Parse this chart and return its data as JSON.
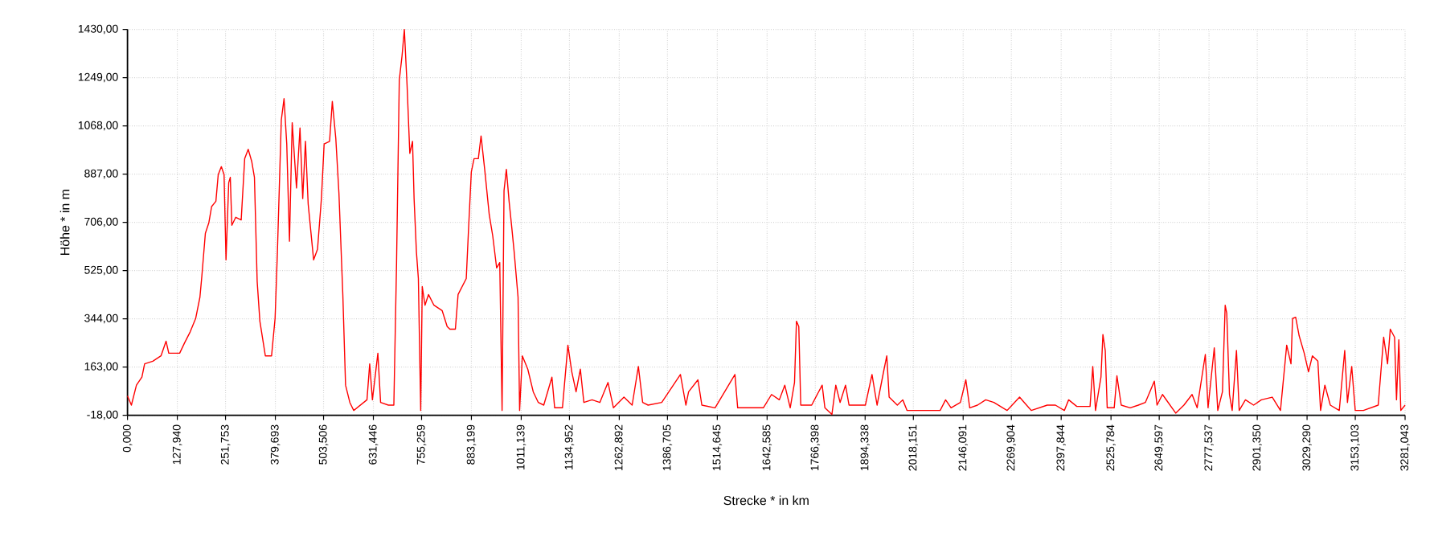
{
  "chart_data": {
    "type": "line",
    "xlabel": "Strecke *  in  km",
    "ylabel": "Höhe *  in  m",
    "xlim": [
      0,
      3281.043
    ],
    "ylim": [
      -18,
      1430
    ],
    "xticks": [
      {
        "value": 0,
        "label": "0,000"
      },
      {
        "value": 127.94,
        "label": "127,940"
      },
      {
        "value": 251.753,
        "label": "251,753"
      },
      {
        "value": 379.693,
        "label": "379,693"
      },
      {
        "value": 503.506,
        "label": "503,506"
      },
      {
        "value": 631.446,
        "label": "631,446"
      },
      {
        "value": 755.259,
        "label": "755,259"
      },
      {
        "value": 883.199,
        "label": "883,199"
      },
      {
        "value": 1011.139,
        "label": "1011,139"
      },
      {
        "value": 1134.952,
        "label": "1134,952"
      },
      {
        "value": 1262.892,
        "label": "1262,892"
      },
      {
        "value": 1386.705,
        "label": "1386,705"
      },
      {
        "value": 1514.645,
        "label": "1514,645"
      },
      {
        "value": 1642.585,
        "label": "1642,585"
      },
      {
        "value": 1766.398,
        "label": "1766,398"
      },
      {
        "value": 1894.338,
        "label": "1894,338"
      },
      {
        "value": 2018.151,
        "label": "2018,151"
      },
      {
        "value": 2146.091,
        "label": "2146,091"
      },
      {
        "value": 2269.904,
        "label": "2269,904"
      },
      {
        "value": 2397.844,
        "label": "2397,844"
      },
      {
        "value": 2525.784,
        "label": "2525,784"
      },
      {
        "value": 2649.597,
        "label": "2649,597"
      },
      {
        "value": 2777.537,
        "label": "2777,537"
      },
      {
        "value": 2901.35,
        "label": "2901,350"
      },
      {
        "value": 3029.29,
        "label": "3029,290"
      },
      {
        "value": 3153.103,
        "label": "3153,103"
      },
      {
        "value": 3281.043,
        "label": "3281,043"
      }
    ],
    "yticks": [
      {
        "value": -18,
        "label": "-18,00"
      },
      {
        "value": 163,
        "label": "163,00"
      },
      {
        "value": 344,
        "label": "344,00"
      },
      {
        "value": 525,
        "label": "525,00"
      },
      {
        "value": 706,
        "label": "706,00"
      },
      {
        "value": 887,
        "label": "887,00"
      },
      {
        "value": 1068,
        "label": "1068,00"
      },
      {
        "value": 1249,
        "label": "1249,00"
      },
      {
        "value": 1430,
        "label": "1430,00"
      }
    ],
    "grid": true,
    "marker": "none",
    "line_style": "solid",
    "series": [
      {
        "color": "#ff0000",
        "x": [
          0,
          10,
          23,
          37,
          44,
          65,
          86,
          99,
          106,
          134,
          147,
          161,
          175,
          186,
          191,
          200,
          209,
          216,
          227,
          233,
          241,
          248,
          253,
          260,
          264,
          268,
          278,
          292,
          301,
          310,
          319,
          326,
          333,
          340,
          354,
          370,
          379,
          385,
          395,
          402,
          409,
          416,
          423,
          434,
          443,
          450,
          457,
          464,
          478,
          488,
          498,
          505,
          519,
          526,
          535,
          543,
          553,
          560,
          571,
          581,
          615,
          622,
          629,
          643,
          650,
          670,
          684,
          691,
          698,
          705,
          711,
          718,
          725,
          732,
          736,
          742,
          747,
          753,
          757,
          764,
          773,
          787,
          808,
          821,
          828,
          842,
          849,
          870,
          876,
          883,
          890,
          901,
          908,
          918,
          929,
          938,
          948,
          956,
          962,
          967,
          973,
          980,
          987,
          993,
          1003,
          1007,
          1014,
          1028,
          1042,
          1055,
          1069,
          1090,
          1097,
          1117,
          1131,
          1141,
          1152,
          1163,
          1172,
          1193,
          1213,
          1234,
          1248,
          1275,
          1296,
          1312,
          1323,
          1337,
          1372,
          1420,
          1434,
          1441,
          1465,
          1475,
          1509,
          1560,
          1567,
          1633,
          1654,
          1674,
          1688,
          1702,
          1713,
          1718,
          1724,
          1729,
          1757,
          1784,
          1791,
          1809,
          1819,
          1830,
          1844,
          1853,
          1895,
          1912,
          1925,
          1943,
          1950,
          1956,
          1977,
          1991,
          2002,
          2018,
          2087,
          2101,
          2115,
          2139,
          2153,
          2163,
          2183,
          2204,
          2225,
          2259,
          2291,
          2321,
          2362,
          2383,
          2406,
          2417,
          2438,
          2472,
          2479,
          2486,
          2500,
          2505,
          2511,
          2516,
          2534,
          2541,
          2552,
          2575,
          2596,
          2614,
          2637,
          2644,
          2658,
          2692,
          2713,
          2734,
          2747,
          2768,
          2775,
          2791,
          2800,
          2812,
          2819,
          2823,
          2830,
          2837,
          2848,
          2855,
          2871,
          2892,
          2912,
          2940,
          2961,
          2977,
          2988,
          2992,
          3000,
          3009,
          3022,
          3033,
          3043,
          3057,
          3064,
          3075,
          3089,
          3112,
          3126,
          3133,
          3144,
          3153,
          3174,
          3212,
          3226,
          3236,
          3243,
          3254,
          3259,
          3265,
          3270,
          3281
        ],
        "values": [
          55,
          20,
          95,
          125,
          175,
          185,
          205,
          260,
          215,
          215,
          255,
          295,
          345,
          425,
          505,
          665,
          705,
          765,
          785,
          885,
          915,
          885,
          565,
          855,
          875,
          695,
          725,
          715,
          945,
          980,
          935,
          875,
          485,
          335,
          205,
          205,
          345,
          595,
          1090,
          1170,
          1000,
          635,
          1080,
          835,
          1060,
          795,
          1010,
          775,
          565,
          605,
          795,
          1000,
          1010,
          1160,
          1020,
          815,
          435,
          95,
          30,
          0,
          40,
          175,
          40,
          215,
          30,
          20,
          20,
          555,
          1240,
          1330,
          1430,
          1220,
          965,
          1010,
          795,
          595,
          495,
          0,
          465,
          395,
          435,
          395,
          375,
          315,
          305,
          305,
          435,
          495,
          685,
          895,
          945,
          945,
          1030,
          895,
          735,
          655,
          535,
          555,
          0,
          825,
          905,
          785,
          685,
          595,
          425,
          0,
          205,
          155,
          70,
          30,
          20,
          125,
          10,
          10,
          245,
          145,
          70,
          155,
          30,
          40,
          30,
          105,
          10,
          50,
          20,
          165,
          30,
          20,
          30,
          135,
          20,
          70,
          115,
          20,
          10,
          135,
          10,
          10,
          60,
          40,
          95,
          10,
          105,
          335,
          315,
          20,
          20,
          95,
          10,
          -15,
          95,
          30,
          95,
          20,
          20,
          135,
          20,
          155,
          205,
          50,
          20,
          40,
          0,
          0,
          0,
          40,
          10,
          30,
          115,
          10,
          20,
          40,
          30,
          0,
          50,
          0,
          20,
          20,
          0,
          40,
          15,
          15,
          165,
          0,
          125,
          285,
          225,
          10,
          10,
          130,
          20,
          10,
          20,
          30,
          110,
          20,
          60,
          -10,
          20,
          60,
          10,
          210,
          10,
          235,
          0,
          70,
          395,
          365,
          60,
          0,
          225,
          0,
          40,
          20,
          40,
          50,
          0,
          245,
          175,
          345,
          350,
          280,
          215,
          145,
          205,
          185,
          0,
          95,
          20,
          0,
          225,
          30,
          165,
          0,
          0,
          20,
          275,
          175,
          305,
          275,
          40,
          265,
          0,
          20
        ]
      }
    ]
  }
}
